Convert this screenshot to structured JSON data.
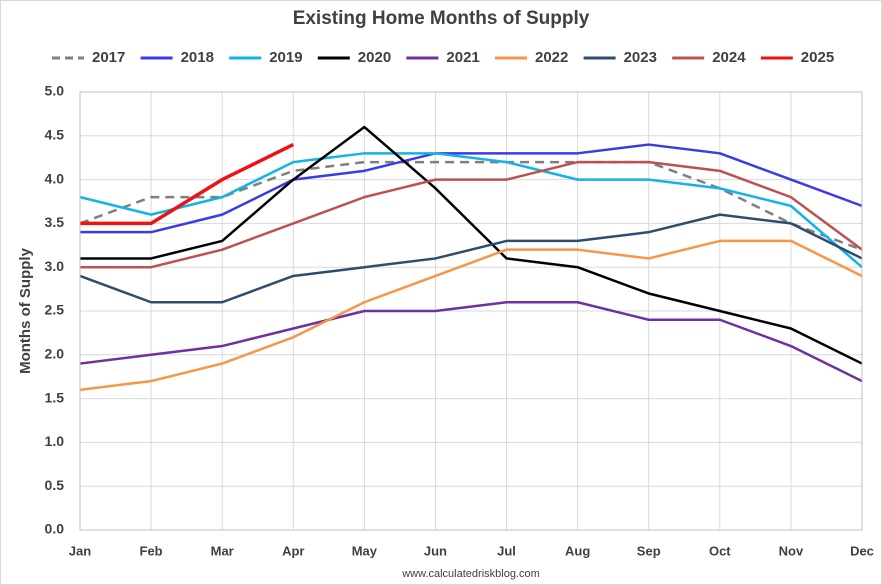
{
  "chart_data": {
    "type": "line",
    "title": "Existing Home Months of Supply",
    "y_label": "Months of Supply",
    "source": "www.calculatedriskblog.com",
    "categories": [
      "Jan",
      "Feb",
      "Mar",
      "Apr",
      "May",
      "Jun",
      "Jul",
      "Aug",
      "Sep",
      "Oct",
      "Nov",
      "Dec"
    ],
    "ylim": [
      0,
      5
    ],
    "yticks": [
      {
        "value": 0,
        "label": "0.0"
      },
      0.5,
      {
        "value": 1,
        "label": "1.0"
      },
      1.5,
      {
        "value": 2,
        "label": "2.0"
      },
      2.5,
      {
        "value": 3,
        "label": "3.0"
      },
      3.5,
      {
        "value": 4,
        "label": "4.0"
      },
      4.5,
      {
        "value": 5,
        "label": "5.0"
      }
    ],
    "grid": true,
    "legend": "top",
    "series": [
      {
        "name": "2017",
        "color": "#7f7f7f",
        "dashed": true,
        "values": [
          3.5,
          3.8,
          3.8,
          4.1,
          4.2,
          4.2,
          4.2,
          4.2,
          4.2,
          3.9,
          3.5,
          3.2
        ]
      },
      {
        "name": "2018",
        "color": "#3a3ae8",
        "values": [
          3.4,
          3.4,
          3.6,
          4.0,
          4.1,
          4.3,
          4.3,
          4.3,
          4.4,
          4.3,
          4.0,
          3.7
        ]
      },
      {
        "name": "2019",
        "color": "#12b4e8",
        "values": [
          3.8,
          3.6,
          3.8,
          4.2,
          4.3,
          4.3,
          4.2,
          4.0,
          4.0,
          3.9,
          3.7,
          3.0
        ]
      },
      {
        "name": "2020",
        "color": "#000000",
        "values": [
          3.1,
          3.1,
          3.3,
          4.0,
          4.6,
          3.9,
          3.1,
          3.0,
          2.7,
          2.5,
          2.3,
          1.9
        ]
      },
      {
        "name": "2021",
        "color": "#7030a0",
        "values": [
          1.9,
          2.0,
          2.1,
          2.3,
          2.5,
          2.5,
          2.6,
          2.6,
          2.4,
          2.4,
          2.1,
          1.7
        ]
      },
      {
        "name": "2022",
        "color": "#f79646",
        "values": [
          1.6,
          1.7,
          1.9,
          2.2,
          2.6,
          2.9,
          3.2,
          3.2,
          3.1,
          3.3,
          3.3,
          2.9
        ]
      },
      {
        "name": "2023",
        "color": "#2e4d6e",
        "values": [
          2.9,
          2.6,
          2.6,
          2.9,
          3.0,
          3.1,
          3.3,
          3.3,
          3.4,
          3.6,
          3.5,
          3.1
        ]
      },
      {
        "name": "2024",
        "color": "#c0504d",
        "values": [
          3.0,
          3.0,
          3.2,
          3.5,
          3.8,
          4.0,
          4.0,
          4.2,
          4.2,
          4.1,
          3.8,
          3.2
        ]
      },
      {
        "name": "2025",
        "color": "#ee1111",
        "values": [
          3.5,
          3.5,
          4.0,
          4.4,
          null,
          null,
          null,
          null,
          null,
          null,
          null,
          null
        ]
      }
    ]
  }
}
